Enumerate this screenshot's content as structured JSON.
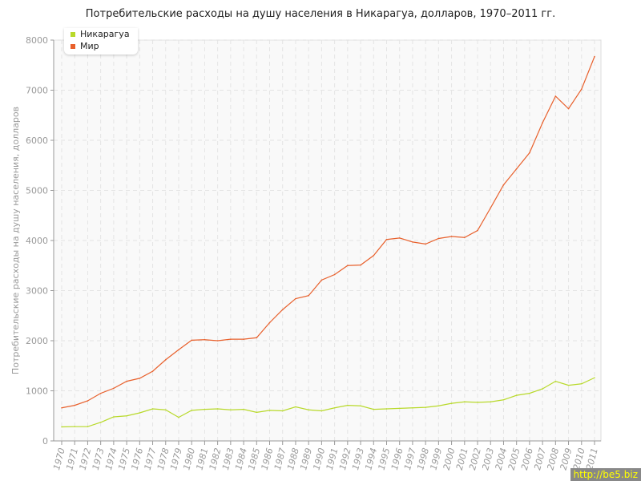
{
  "chart_data": {
    "type": "line",
    "title": "Потребительские расходы на душу населения в Никарагуа, долларов, 1970–2011 гг.",
    "xlabel": "",
    "ylabel": "Потребительские расходы на душу населения, долларов",
    "ylim": [
      0,
      8000
    ],
    "yticks": [
      0,
      1000,
      2000,
      3000,
      4000,
      5000,
      6000,
      7000,
      8000
    ],
    "grid": true,
    "legend": "top-left",
    "x": [
      1970,
      1971,
      1972,
      1973,
      1974,
      1975,
      1976,
      1977,
      1978,
      1979,
      1980,
      1981,
      1982,
      1983,
      1984,
      1985,
      1986,
      1987,
      1988,
      1989,
      1990,
      1991,
      1992,
      1993,
      1994,
      1995,
      1996,
      1997,
      1998,
      1999,
      2000,
      2001,
      2002,
      2003,
      2004,
      2005,
      2006,
      2007,
      2008,
      2009,
      2010,
      2011
    ],
    "series": [
      {
        "name": "Никарагуа",
        "color": "#b8d92a",
        "values": [
          280,
          285,
          285,
          370,
          480,
          500,
          560,
          640,
          620,
          470,
          610,
          630,
          640,
          620,
          630,
          570,
          610,
          600,
          680,
          620,
          600,
          660,
          710,
          700,
          630,
          640,
          650,
          660,
          670,
          700,
          750,
          780,
          770,
          780,
          820,
          910,
          950,
          1040,
          1190,
          1110,
          1140,
          1260
        ]
      },
      {
        "name": "Мир",
        "color": "#e8602c",
        "values": [
          660,
          710,
          800,
          950,
          1050,
          1190,
          1250,
          1390,
          1620,
          1820,
          2010,
          2020,
          2000,
          2030,
          2030,
          2060,
          2360,
          2620,
          2840,
          2900,
          3210,
          3320,
          3500,
          3510,
          3700,
          4020,
          4050,
          3970,
          3930,
          4040,
          4080,
          4060,
          4200,
          4650,
          5110,
          5430,
          5750,
          6350,
          6880,
          6630,
          7020,
          7670
        ]
      }
    ]
  },
  "watermark": "http://be5.biz"
}
